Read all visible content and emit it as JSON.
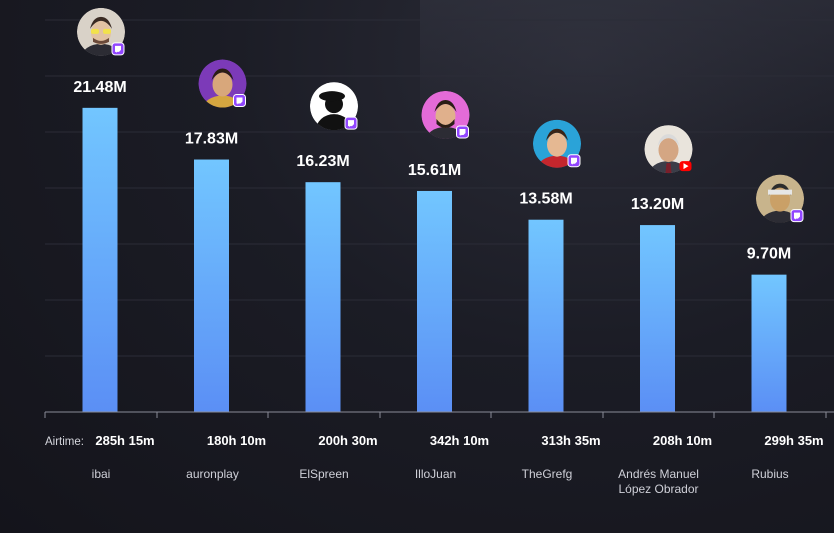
{
  "chart_data": {
    "type": "bar",
    "title": "",
    "xlabel": "",
    "ylabel": "",
    "ylim": [
      0,
      24
    ],
    "categories": [
      "ibai",
      "auronplay",
      "ElSpreen",
      "IlloJuan",
      "TheGrefg",
      "Andrés Manuel López Obrador",
      "Rubius"
    ],
    "category_lines": [
      [
        "ibai"
      ],
      [
        "auronplay"
      ],
      [
        "ElSpreen"
      ],
      [
        "IlloJuan"
      ],
      [
        "TheGrefg"
      ],
      [
        "Andrés Manuel",
        "López Obrador"
      ],
      [
        "Rubius"
      ]
    ],
    "values": [
      21.48,
      17.83,
      16.23,
      15.61,
      13.58,
      13.2,
      9.7
    ],
    "value_labels": [
      "21.48M",
      "17.83M",
      "16.23M",
      "15.61M",
      "13.58M",
      "13.20M",
      "9.70M"
    ],
    "airtime_label": "Airtime:",
    "airtime": [
      "285h 15m",
      "180h 10m",
      "200h 30m",
      "342h 10m",
      "313h 35m",
      "208h 10m",
      "299h 35m"
    ],
    "platform_icons": [
      "twitch-icon",
      "twitch-icon",
      "twitch-icon",
      "twitch-icon",
      "twitch-icon",
      "youtube-icon",
      "twitch-icon"
    ],
    "avatar_icons": [
      "avatar-ibai",
      "avatar-auronplay",
      "avatar-elspreen",
      "avatar-illojuan",
      "avatar-thegrefg",
      "avatar-amlo",
      "avatar-rubius"
    ],
    "grid": true,
    "colors": {
      "bar_top": "#72c6ff",
      "bar_bottom": "#5b8ff5",
      "twitch": "#9146ff",
      "youtube": "#ff0000"
    }
  }
}
